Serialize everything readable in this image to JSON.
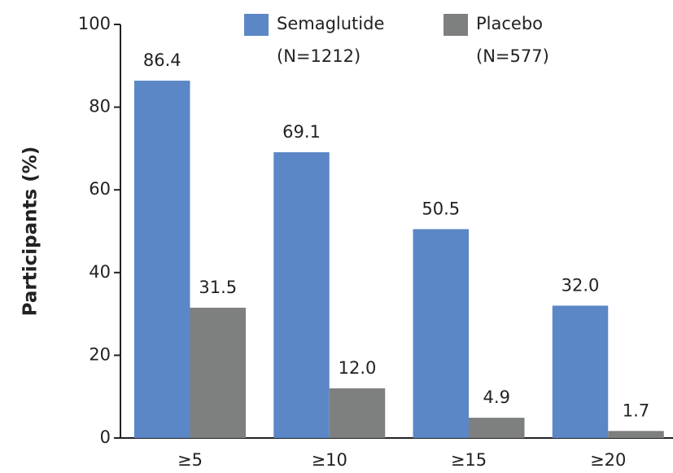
{
  "chart_data": {
    "type": "bar",
    "y_label": "Participants (%)",
    "categories": [
      "≥5",
      "≥10",
      "≥15",
      "≥20"
    ],
    "series": [
      {
        "name": "Semaglutide",
        "note": "(N=1212)",
        "color": "#5b87c6",
        "values": [
          86.4,
          69.1,
          50.5,
          32
        ],
        "value_labels": [
          "86.4",
          "69.1",
          "50.5",
          "32.0"
        ]
      },
      {
        "name": "Placebo",
        "note": "(N=577)",
        "color": "#7e8080",
        "values": [
          31.5,
          12,
          4.9,
          1.7
        ],
        "value_labels": [
          "31.5",
          "12.0",
          "4.9",
          "1.7"
        ]
      }
    ],
    "ylim": [
      0,
      100
    ],
    "yticks": [
      0,
      20,
      40,
      60,
      80,
      100
    ]
  }
}
